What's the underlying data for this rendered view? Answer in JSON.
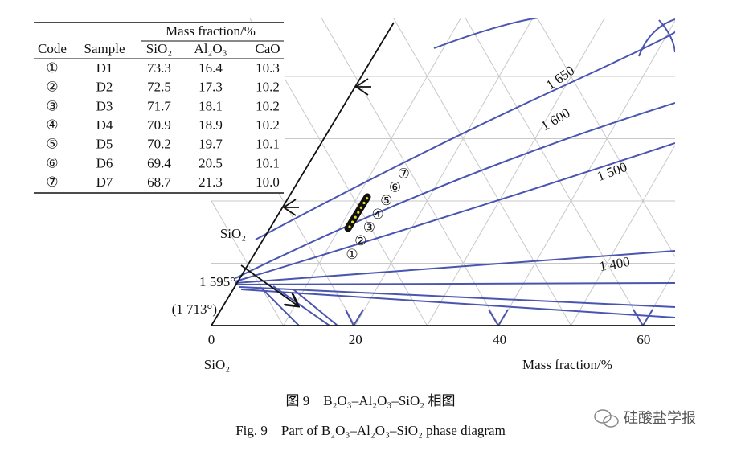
{
  "table": {
    "group_header": "Mass fraction/%",
    "columns": [
      "Code",
      "Sample",
      "SiO₂",
      "Al₂O₃",
      "CaO"
    ],
    "rows": [
      [
        "①",
        "D1",
        "73.3",
        "16.4",
        "10.3"
      ],
      [
        "②",
        "D2",
        "72.5",
        "17.3",
        "10.2"
      ],
      [
        "③",
        "D3",
        "71.7",
        "18.1",
        "10.2"
      ],
      [
        "④",
        "D4",
        "70.9",
        "18.9",
        "10.2"
      ],
      [
        "⑤",
        "D5",
        "70.2",
        "19.7",
        "10.1"
      ],
      [
        "⑥",
        "D6",
        "69.4",
        "20.5",
        "10.1"
      ],
      [
        "⑦",
        "D7",
        "68.7",
        "21.3",
        "10.0"
      ]
    ]
  },
  "diagram": {
    "isotherms": [
      "1 650",
      "1 600",
      "1 500",
      "1 400"
    ],
    "apex_label": "SiO₂",
    "point_labels": [
      "1 595°",
      "(1 713°)"
    ],
    "axis_ticks": [
      "0",
      "20",
      "40",
      "60"
    ],
    "corner_label": "SiO₂",
    "x_label": "Mass fraction/%"
  },
  "caption": {
    "zh": "图 9　B₂O₃–Al₂O₃–SiO₂ 相图",
    "en": "Fig. 9　Part of B₂O₃–Al₂O₃–SiO₂ phase diagram"
  },
  "watermark": "硅酸盐学报"
}
